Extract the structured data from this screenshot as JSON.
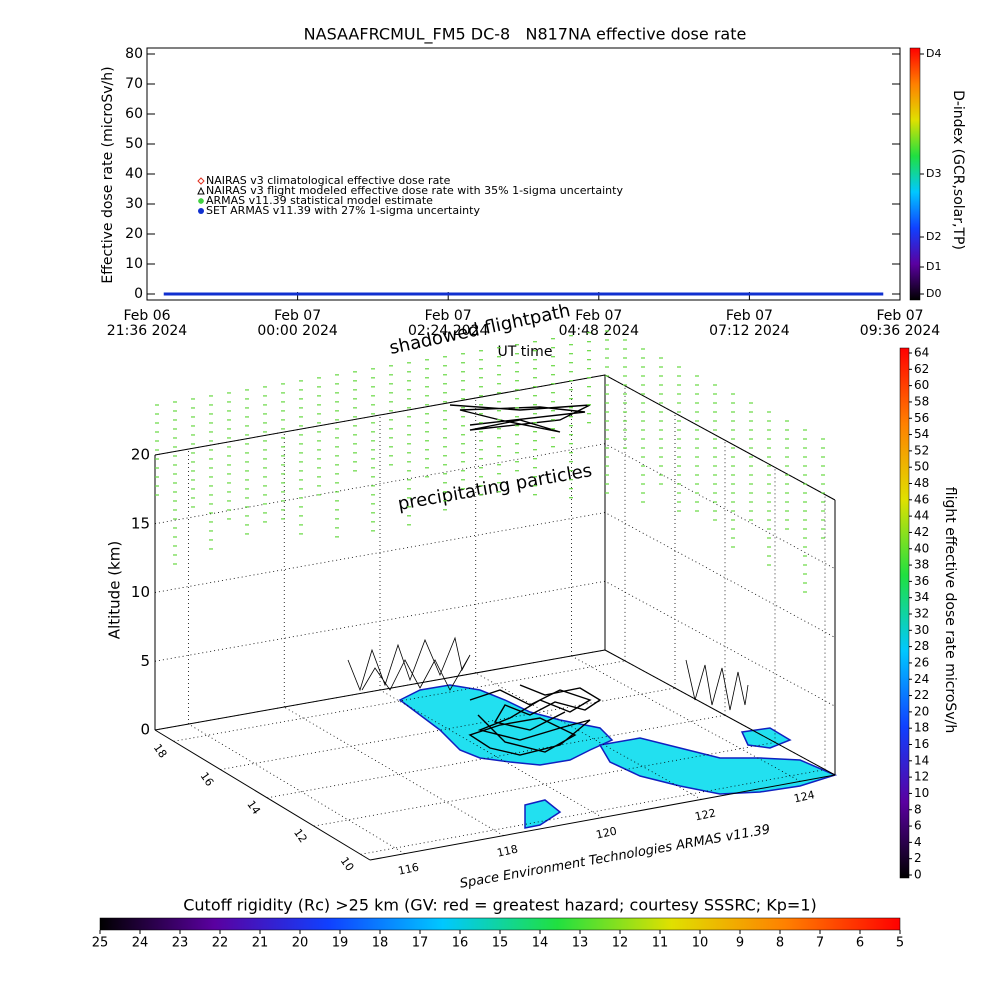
{
  "chart_data": [
    {
      "type": "line",
      "title": "NASAAFRCMUL_FM5 DC-8   N817NA effective dose rate",
      "ylabel": "Effective dose rate (microSv/h)",
      "xlabel": "UT time",
      "y2label": "D-index (GCR,solar,TP)",
      "xlim": [
        "2024-02-06T21:36",
        "2024-02-07T09:36"
      ],
      "xticks": [
        {
          "value": "2024-02-06T21:36",
          "label": [
            "Feb 06",
            "21:36 2024"
          ]
        },
        {
          "value": "2024-02-07T00:00",
          "label": [
            "Feb 07",
            "00:00 2024"
          ]
        },
        {
          "value": "2024-02-07T02:24",
          "label": [
            "Feb 07",
            "02:24 2024"
          ]
        },
        {
          "value": "2024-02-07T04:48",
          "label": [
            "Feb 07",
            "04:48 2024"
          ]
        },
        {
          "value": "2024-02-07T07:12",
          "label": [
            "Feb 07",
            "07:12 2024"
          ]
        },
        {
          "value": "2024-02-07T09:36",
          "label": [
            "Feb 07",
            "09:36 2024"
          ]
        }
      ],
      "ylim": [
        -2,
        82
      ],
      "yticks": [
        0,
        10,
        20,
        30,
        40,
        50,
        60,
        70,
        80
      ],
      "y2lim": [
        -2,
        82
      ],
      "y2ticks": [
        {
          "value": 0,
          "label": "D0"
        },
        {
          "value": 9,
          "label": "D1"
        },
        {
          "value": 19,
          "label": "D2"
        },
        {
          "value": 40,
          "label": "D3"
        },
        {
          "value": 80,
          "label": "D4"
        }
      ],
      "y2colors": [
        "#000000",
        "#5a00a0",
        "#1040ff",
        "#00c8ff",
        "#20e040",
        "#e0e000",
        "#ff8000",
        "#ff0000"
      ],
      "series": [
        {
          "name": "NAIRAS v3 climatological effective dose rate",
          "color": "#e03020",
          "marker": "diamond",
          "x": [],
          "values": []
        },
        {
          "name": "NAIRAS v3 flight modeled effective dose rate with 35% 1-sigma uncertainty",
          "color": "#000000",
          "marker": "triangle",
          "x": [],
          "values": []
        },
        {
          "name": "ARMAS v11.39 statistical model estimate",
          "color": "#40d040",
          "marker": "star",
          "x": [],
          "values": []
        },
        {
          "name": "SET ARMAS v11.39 with 27% 1-sigma uncertainty",
          "color": "#1030d0",
          "marker": "dot",
          "x": [
            "2024-02-06T21:52",
            "2024-02-06T23:00",
            "2024-02-07T00:00",
            "2024-02-07T01:00",
            "2024-02-07T02:00",
            "2024-02-07T03:00",
            "2024-02-07T04:00",
            "2024-02-07T05:00",
            "2024-02-07T06:00",
            "2024-02-07T07:00",
            "2024-02-07T08:00",
            "2024-02-07T09:20"
          ],
          "values": [
            0,
            0,
            0,
            0,
            0,
            0,
            0,
            0,
            0,
            0,
            0,
            0
          ]
        }
      ]
    },
    {
      "type": "surface3d",
      "zlabel": "Altitude (km)",
      "zlim": [
        0,
        20
      ],
      "zticks": [
        0,
        5,
        10,
        15,
        20
      ],
      "ylim": [
        9.6,
        18.8
      ],
      "yticks": [
        10,
        12,
        14,
        16,
        18
      ],
      "xlim": [
        115.3,
        124.7
      ],
      "xticks": [
        116,
        118,
        120,
        122,
        124
      ],
      "annotations": [
        "shadowed flightpath",
        "precipitating particles"
      ],
      "credit": "Space Environment Technologies ARMAS v11.39"
    },
    {
      "type": "colorbar",
      "orientation": "vertical",
      "label": "flight effective dose rate microSv/h",
      "lim": [
        0,
        64
      ],
      "ticks": [
        0,
        2,
        4,
        6,
        8,
        10,
        12,
        14,
        16,
        18,
        20,
        22,
        24,
        26,
        28,
        30,
        32,
        34,
        36,
        38,
        40,
        42,
        44,
        46,
        48,
        50,
        52,
        54,
        56,
        58,
        60,
        62,
        64
      ],
      "colors": [
        "#000000",
        "#5a00a0",
        "#1040ff",
        "#00c8ff",
        "#20e040",
        "#e0e000",
        "#ff8000",
        "#ff0000"
      ]
    },
    {
      "type": "colorbar",
      "orientation": "horizontal",
      "label": "Cutoff rigidity (Rc) >25 km (GV: red = greatest hazard; courtesy SSSRC; Kp=1)",
      "lim": [
        25,
        5
      ],
      "ticks": [
        25,
        24,
        23,
        22,
        21,
        20,
        19,
        18,
        17,
        16,
        15,
        14,
        13,
        12,
        11,
        10,
        9,
        8,
        7,
        6,
        5
      ],
      "colors": [
        "#000000",
        "#5a00a0",
        "#1040ff",
        "#00c8ff",
        "#20e040",
        "#e0e000",
        "#ff8000",
        "#ff0000"
      ]
    }
  ]
}
